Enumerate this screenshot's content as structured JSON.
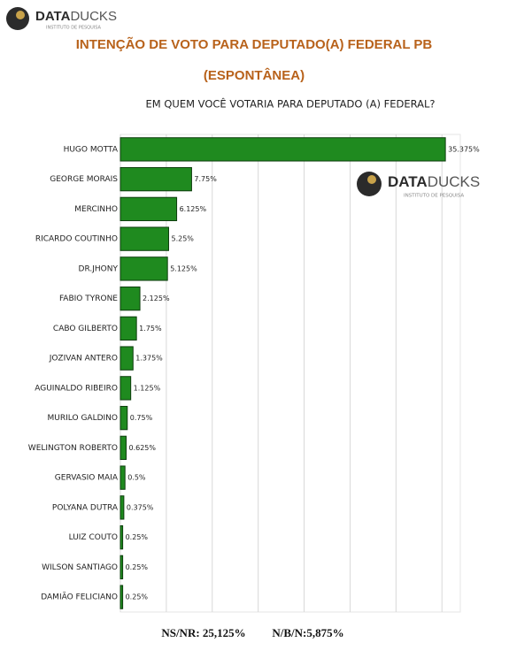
{
  "brand": {
    "name_1": "DATA",
    "name_2": "DUCKS",
    "tagline": "INSTITUTO DE PESQUISA"
  },
  "chart_data": {
    "type": "barh",
    "title": "INTENÇÃO DE VOTO PARA DEPUTADO(A) FEDERAL PB",
    "title_2": "(ESPONTÂNEA)",
    "subtitle": "EM QUEM VOCÊ VOTARIA PARA DEPUTADO (A) FEDERAL?",
    "categories": [
      "HUGO MOTTA",
      "GEORGE MORAIS",
      "MERCINHO",
      "RICARDO COUTINHO",
      "DR.JHONY",
      "FABIO TYRONE",
      "CABO GILBERTO",
      "JOZIVAN ANTERO",
      "AGUINALDO RIBEIRO",
      "MURILO GALDINO",
      "WELINGTON ROBERTO",
      "GERVASIO MAIA",
      "POLYANA DUTRA",
      "LUIZ COUTO",
      "WILSON SANTIAGO",
      "DAMIÃO FELICIANO"
    ],
    "values": [
      35.375,
      7.75,
      6.125,
      5.25,
      5.125,
      2.125,
      1.75,
      1.375,
      1.125,
      0.75,
      0.625,
      0.5,
      0.375,
      0.25,
      0.25,
      0.25
    ],
    "value_labels": [
      "35.375%",
      "7.75%",
      "6.125%",
      "5.25%",
      "5.125%",
      "2.125%",
      "1.75%",
      "1.375%",
      "1.125%",
      "0.75%",
      "0.625%",
      "0.5%",
      "0.375%",
      "0.25%",
      "0.25%",
      "0.25%"
    ],
    "color": "#1f8a1f",
    "xlim": [
      0,
      37
    ],
    "xticks": [
      0,
      5,
      10,
      15,
      20,
      25,
      30,
      35
    ],
    "grid": true,
    "annotations": [
      "NS/NR: 25,125%",
      "N/B/N:5,875%"
    ]
  }
}
